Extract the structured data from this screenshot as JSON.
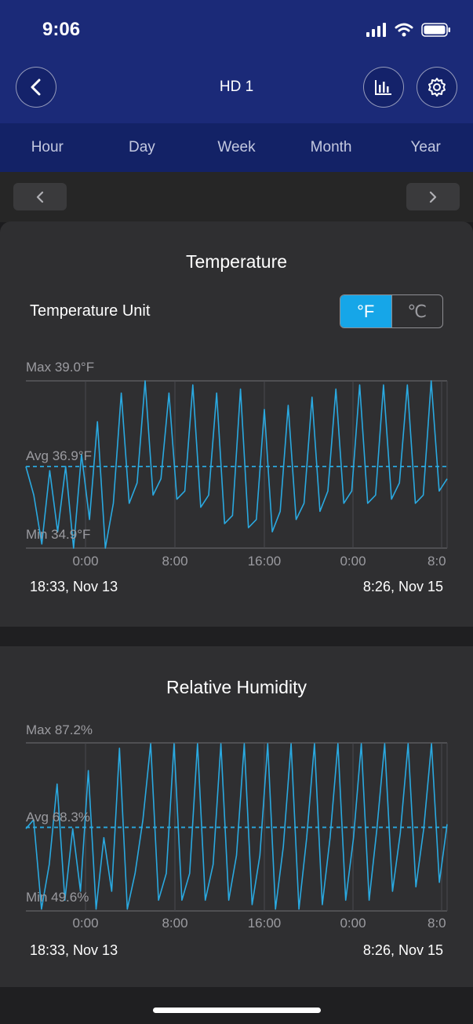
{
  "status_bar": {
    "time": "9:06"
  },
  "header": {
    "title": "HD 1"
  },
  "tabs": [
    {
      "label": "Hour"
    },
    {
      "label": "Day"
    },
    {
      "label": "Week"
    },
    {
      "label": "Month"
    },
    {
      "label": "Year"
    }
  ],
  "temperature": {
    "title": "Temperature",
    "unit_label": "Temperature Unit",
    "unit_f": "°F",
    "unit_c": "℃",
    "selected_unit": "F",
    "start_date": "18:33,  Nov 13",
    "end_date": "8:26,  Nov 15"
  },
  "humidity": {
    "title": "Relative Humidity",
    "start_date": "18:33,  Nov 13",
    "end_date": "8:26,  Nov 15"
  },
  "colors": {
    "header_bg": "#1b2a78",
    "tab_bg": "#132266",
    "card_bg": "#2f2f31",
    "accent": "#16a6e8",
    "line": "#2aa9e0"
  },
  "chart_data": [
    {
      "type": "line",
      "title": "Temperature",
      "x_ticks": [
        "0:00",
        "8:00",
        "16:00",
        "0:00",
        "8:0"
      ],
      "annotations": {
        "max_label": "Max 39.0°F",
        "avg_label": "Avg 36.9°F",
        "min_label": "Min 34.9°F"
      },
      "ylim": [
        34.9,
        39.0
      ],
      "avg": 36.9,
      "grid": true,
      "series": [
        {
          "values": [
            36.9,
            36.2,
            35.0,
            36.8,
            35.3,
            36.9,
            34.9,
            37.2,
            35.6,
            38.0,
            34.9,
            36.0,
            38.7,
            36.0,
            36.5,
            39.0,
            36.2,
            36.6,
            38.7,
            36.1,
            36.3,
            38.9,
            35.9,
            36.2,
            38.7,
            35.5,
            35.7,
            38.8,
            35.4,
            35.6,
            38.3,
            35.3,
            35.8,
            38.4,
            35.6,
            36.0,
            38.6,
            35.8,
            36.3,
            38.8,
            36.0,
            36.3,
            38.9,
            36.0,
            36.2,
            38.9,
            36.1,
            36.5,
            38.9,
            36.0,
            36.2,
            39.0,
            36.3,
            36.6
          ]
        }
      ]
    },
    {
      "type": "line",
      "title": "Relative Humidity",
      "x_ticks": [
        "0:00",
        "8:00",
        "16:00",
        "0:00",
        "8:0"
      ],
      "annotations": {
        "max_label": "Max 87.2%",
        "avg_label": "Avg 68.3%",
        "min_label": "Min 49.6%"
      },
      "ylim": [
        49.6,
        87.2
      ],
      "avg": 68.3,
      "grid": true,
      "series": [
        {
          "values": [
            68.0,
            70.0,
            50.0,
            60.0,
            78.0,
            52.0,
            68.0,
            54.0,
            81.0,
            50.0,
            66.0,
            54.0,
            86.0,
            50.0,
            58.0,
            70.0,
            87.0,
            52.0,
            58.0,
            87.0,
            52.0,
            58.0,
            87.0,
            52.0,
            60.0,
            87.0,
            52.0,
            62.0,
            87.0,
            51.0,
            62.0,
            87.0,
            50.0,
            64.0,
            87.0,
            50.0,
            66.0,
            87.0,
            51.0,
            66.0,
            87.0,
            52.0,
            66.0,
            87.0,
            52.0,
            68.0,
            87.0,
            54.0,
            67.0,
            87.0,
            55.0,
            68.0,
            87.0,
            56.0,
            69.0
          ]
        }
      ]
    }
  ]
}
